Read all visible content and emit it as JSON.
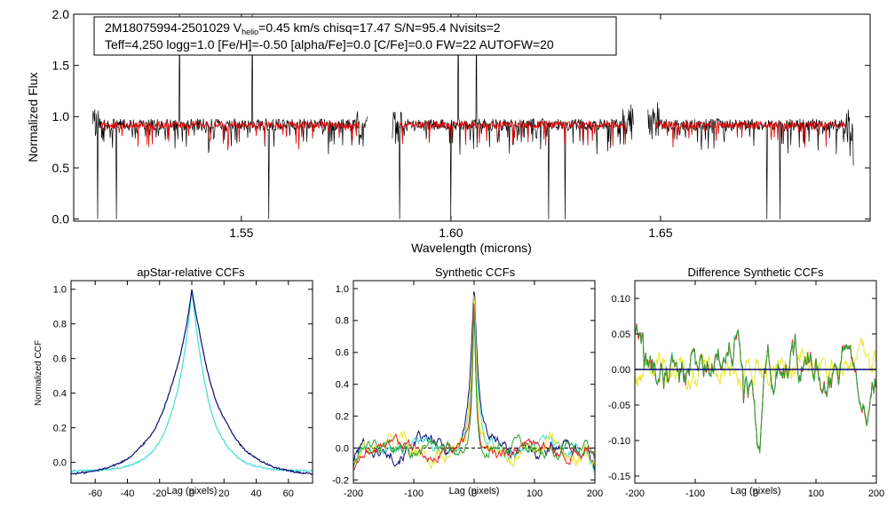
{
  "colors": {
    "observed": "#000000",
    "model": "#e00000",
    "navy": "#0a0a78",
    "cyan": "#40e0d0",
    "red": "#e02020",
    "green": "#30a030",
    "yellow": "#e8e830",
    "zero_line": "#000000"
  },
  "chart_data": [
    {
      "type": "line",
      "name": "spectrum",
      "title_line1_prefix": "2M18075994-2501029  V",
      "title_line1_sub": "helio",
      "title_line1_suffix": "=0.45 km/s  chisq=17.47  S/N=95.4  Nvisits=2",
      "title_line2": "Teff=4,250 logg=1.0 [Fe/H]=-0.50 [alpha/Fe]=0.0 [C/Fe]=0.0 FW=22 AUTOFW=20",
      "xlabel": "Wavelength (microns)",
      "ylabel": "Normalized Flux",
      "xlim": [
        1.51,
        1.7
      ],
      "ylim": [
        -0.02,
        2.0
      ],
      "xticks": [
        "1.55",
        "1.60",
        "1.65"
      ],
      "xtick_values": [
        1.55,
        1.6,
        1.65
      ],
      "yticks": [
        "0.0",
        "0.5",
        "1.0",
        "1.5",
        "2.0"
      ],
      "ytick_values": [
        0.0,
        0.5,
        1.0,
        1.5,
        2.0
      ],
      "chips": [
        [
          1.5145,
          1.58
        ],
        [
          1.586,
          1.6435
        ],
        [
          1.647,
          1.696
        ]
      ],
      "series": [
        {
          "name": "observed",
          "color_key": "observed",
          "level": 0.92,
          "noise": 0.06
        },
        {
          "name": "model",
          "color_key": "model",
          "level": 0.92,
          "noise": 0.035
        }
      ]
    },
    {
      "type": "line",
      "name": "apstar-ccf",
      "title": "apStar-relative CCFs",
      "xlabel": "Lag (pixels)",
      "ylabel": "Normalized CCF",
      "xlim": [
        -75,
        75
      ],
      "ylim": [
        -0.12,
        1.05
      ],
      "xticks": [
        "-60",
        "-40",
        "-20",
        "0",
        "20",
        "40",
        "60"
      ],
      "xtick_values": [
        -60,
        -40,
        -20,
        0,
        20,
        40,
        60
      ],
      "yticks": [
        "0.0",
        "0.2",
        "0.4",
        "0.6",
        "0.8",
        "1.0"
      ],
      "ytick_values": [
        0.0,
        0.2,
        0.4,
        0.6,
        0.8,
        1.0
      ],
      "series": [
        {
          "name": "ccf-1",
          "color_key": "cyan",
          "width": 11,
          "base": -0.05
        },
        {
          "name": "ccf-2",
          "color_key": "navy",
          "width": 17,
          "base": -0.08
        }
      ]
    },
    {
      "type": "line",
      "name": "synthetic-ccf",
      "title": "Synthetic CCFs",
      "xlabel": "Lag (pixels)",
      "xlim": [
        -200,
        200
      ],
      "ylim": [
        -0.22,
        1.05
      ],
      "xticks": [
        "-200",
        "-100",
        "0",
        "100",
        "200"
      ],
      "xtick_values": [
        -200,
        -100,
        0,
        100,
        200
      ],
      "yticks": [
        "-0.2",
        "0.0",
        "0.2",
        "0.4",
        "0.6",
        "0.8",
        "1.0"
      ],
      "ytick_values": [
        -0.2,
        0.0,
        0.2,
        0.4,
        0.6,
        0.8,
        1.0
      ],
      "zero_line": 0.0,
      "series": [
        {
          "name": "navy",
          "color_key": "navy",
          "width": 9,
          "amp": 0.06
        },
        {
          "name": "cyan",
          "color_key": "cyan",
          "width": 6,
          "amp": 0.05
        },
        {
          "name": "yellow",
          "color_key": "yellow",
          "width": 5,
          "amp": 0.07
        },
        {
          "name": "red",
          "color_key": "red",
          "width": 4,
          "amp": 0.05
        },
        {
          "name": "green",
          "color_key": "green",
          "width": 4,
          "amp": 0.045
        }
      ]
    },
    {
      "type": "line",
      "name": "difference-ccf",
      "title": "Difference Synthetic CCFs",
      "xlabel": "Lag (pixels)",
      "xlim": [
        -200,
        200
      ],
      "ylim": [
        -0.16,
        0.125
      ],
      "xticks": [
        "-200",
        "-100",
        "0",
        "100",
        "200"
      ],
      "xtick_values": [
        -200,
        -100,
        0,
        100,
        200
      ],
      "yticks": [
        "-0.15",
        "-0.10",
        "-0.05",
        "0.00",
        "0.05",
        "0.10"
      ],
      "ytick_values": [
        -0.15,
        -0.1,
        -0.05,
        0.0,
        0.05,
        0.1
      ],
      "zero_line": 0.0,
      "series": [
        {
          "name": "yellow",
          "color_key": "yellow",
          "amp": 0.035
        },
        {
          "name": "cyan",
          "color_key": "cyan",
          "amp": 0.06
        },
        {
          "name": "red",
          "color_key": "red",
          "amp": 0.06
        },
        {
          "name": "green",
          "color_key": "green",
          "amp": 0.058
        },
        {
          "name": "navy",
          "color_key": "navy",
          "amp": 0.0
        }
      ]
    }
  ]
}
